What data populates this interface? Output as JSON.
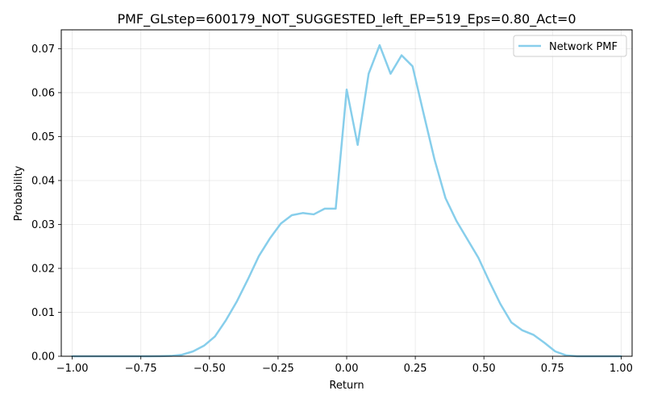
{
  "chart_data": {
    "type": "line",
    "title": "PMF_GLstep=600179_NOT_SUGGESTED_left_EP=519_Eps=0.80_Act=0",
    "xlabel": "Return",
    "ylabel": "Probability",
    "xlim": [
      -1.04,
      1.04
    ],
    "ylim": [
      0.0,
      0.0743
    ],
    "xticks": [
      -1.0,
      -0.75,
      -0.5,
      -0.25,
      0.0,
      0.25,
      0.5,
      0.75,
      1.0
    ],
    "xtick_labels": [
      "−1.00",
      "−0.75",
      "−0.50",
      "−0.25",
      "0.00",
      "0.25",
      "0.50",
      "0.75",
      "1.00"
    ],
    "yticks": [
      0.0,
      0.01,
      0.02,
      0.03,
      0.04,
      0.05,
      0.06,
      0.07
    ],
    "ytick_labels": [
      "0.00",
      "0.01",
      "0.02",
      "0.03",
      "0.04",
      "0.05",
      "0.06",
      "0.07"
    ],
    "grid": true,
    "legend_position": "top-right",
    "colors": {
      "series": "#87ceeb",
      "axes": "#000000",
      "grid": "#b0b0b0"
    },
    "series": [
      {
        "name": "Network PMF",
        "x": [
          -1.0,
          -0.96,
          -0.92,
          -0.88,
          -0.84,
          -0.8,
          -0.76,
          -0.72,
          -0.68,
          -0.64,
          -0.6,
          -0.56,
          -0.52,
          -0.48,
          -0.44,
          -0.4,
          -0.36,
          -0.32,
          -0.28,
          -0.24,
          -0.2,
          -0.16,
          -0.12,
          -0.08,
          -0.04,
          0.0,
          0.04,
          0.08,
          0.12,
          0.16,
          0.2,
          0.24,
          0.28,
          0.32,
          0.36,
          0.4,
          0.44,
          0.48,
          0.52,
          0.56,
          0.6,
          0.64,
          0.68,
          0.72,
          0.76,
          0.8,
          0.84,
          0.88,
          0.92,
          0.96,
          1.0
        ],
        "y": [
          0.0,
          0.0,
          0.0,
          0.0,
          0.0,
          0.0,
          0.0,
          0.0,
          3e-05,
          8e-05,
          0.00035,
          0.0011,
          0.0024,
          0.0045,
          0.0082,
          0.0125,
          0.0175,
          0.0228,
          0.0268,
          0.0302,
          0.0321,
          0.0326,
          0.0323,
          0.0336,
          0.0336,
          0.0607,
          0.0481,
          0.0643,
          0.0708,
          0.0643,
          0.0685,
          0.066,
          0.0553,
          0.0448,
          0.036,
          0.0308,
          0.0266,
          0.0224,
          0.017,
          0.0119,
          0.0077,
          0.0059,
          0.0049,
          0.0031,
          0.0011,
          0.0002,
          0.0,
          0.0,
          0.0,
          0.0,
          0.0
        ]
      }
    ]
  }
}
